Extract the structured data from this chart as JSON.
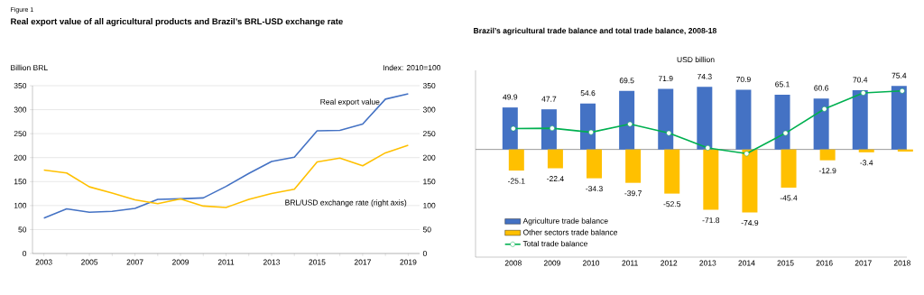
{
  "chart_data": [
    {
      "type": "line",
      "title": "Real export value of all agricultural products and Brazil’s BRL-USD exchange rate",
      "ylabel": "Billion BRL",
      "y2label": "Index: 2010=100",
      "annotations": [
        "Figure 1"
      ],
      "x": [
        2003,
        2004,
        2005,
        2006,
        2007,
        2008,
        2009,
        2010,
        2011,
        2012,
        2013,
        2014,
        2015,
        2016,
        2017,
        2018,
        2019
      ],
      "series": [
        {
          "name": "Real export value",
          "color": "#4472c4",
          "values": [
            74,
            93,
            86,
            88,
            94,
            113,
            114,
            116,
            140,
            167,
            192,
            201,
            256,
            257,
            270,
            322,
            333
          ]
        },
        {
          "name": "BRL/USD exchange rate (right axis)",
          "color": "#ffc000",
          "axis": "y2",
          "values": [
            174,
            168,
            139,
            126,
            112,
            104,
            114,
            99,
            96,
            113,
            125,
            134,
            191,
            199,
            183,
            210,
            226
          ]
        }
      ],
      "xlim": [
        2002.5,
        2019.5
      ],
      "ylim": [
        0,
        350
      ],
      "y2lim": [
        0,
        350
      ],
      "xticks": [
        2003,
        {
          "value": 2004,
          "label": null
        },
        2005,
        {
          "value": 2006,
          "label": null
        },
        2007,
        {
          "value": 2008,
          "label": null
        },
        2009,
        {
          "value": 2010,
          "label": null
        },
        2011,
        {
          "value": 2012,
          "label": null
        },
        2013,
        {
          "value": 2014,
          "label": null
        },
        2015,
        {
          "value": 2016,
          "label": null
        },
        2017,
        {
          "value": 2018,
          "label": null
        },
        2019
      ],
      "yticks": [
        0,
        50,
        100,
        150,
        200,
        250,
        300,
        350
      ],
      "y2ticks": [
        0,
        50,
        100,
        150,
        200,
        250,
        300,
        350
      ],
      "grid": "y",
      "legend": false
    },
    {
      "type": "bar",
      "title": "Brazil’s agricultural trade balance and total trade balance, 2008-18",
      "ylabel": "USD billion",
      "categories": [
        "2008",
        "2009",
        "2010",
        "2011",
        "2012",
        "2013",
        "2014",
        "2015",
        "2016",
        "2017",
        "2018"
      ],
      "series": [
        {
          "name": "Agriculture trade balance",
          "color": "#4472c4",
          "values": [
            49.9,
            47.7,
            54.6,
            69.5,
            71.9,
            74.3,
            70.9,
            65.1,
            60.6,
            70.4,
            75.4
          ],
          "value_labels": [
            "49.9",
            "47.7",
            "54.6",
            "69.5",
            "71.9",
            "74.3",
            "70.9",
            "65.1",
            "60.6",
            "70.4",
            "75.4"
          ]
        },
        {
          "name": "Other sectors trade balance",
          "color": "#ffc000",
          "values": [
            -25.1,
            -22.4,
            -34.3,
            -39.7,
            -52.5,
            -71.8,
            -74.9,
            -45.4,
            -12.9,
            -3.4,
            -2.5
          ],
          "value_labels": [
            "-25.1",
            "-22.4",
            "-34.3",
            "-39.7",
            "-52.5",
            "-71.8",
            "-74.9",
            "-45.4",
            "-12.9",
            "-3.4",
            null
          ]
        },
        {
          "name": "Total trade balance",
          "type": "line",
          "color": "#00b050",
          "values": [
            24.8,
            25.2,
            20.4,
            30.1,
            19.4,
            1.8,
            -5,
            19.4,
            48.1,
            67.2,
            69.6
          ]
        }
      ],
      "ylim": [
        -128,
        94
      ],
      "tick_labels": "x",
      "legend": "bottom left",
      "marker": "circle",
      "ref_lines": [
        {
          "axis": "y",
          "value": 0,
          "color": "#808080"
        }
      ]
    }
  ]
}
